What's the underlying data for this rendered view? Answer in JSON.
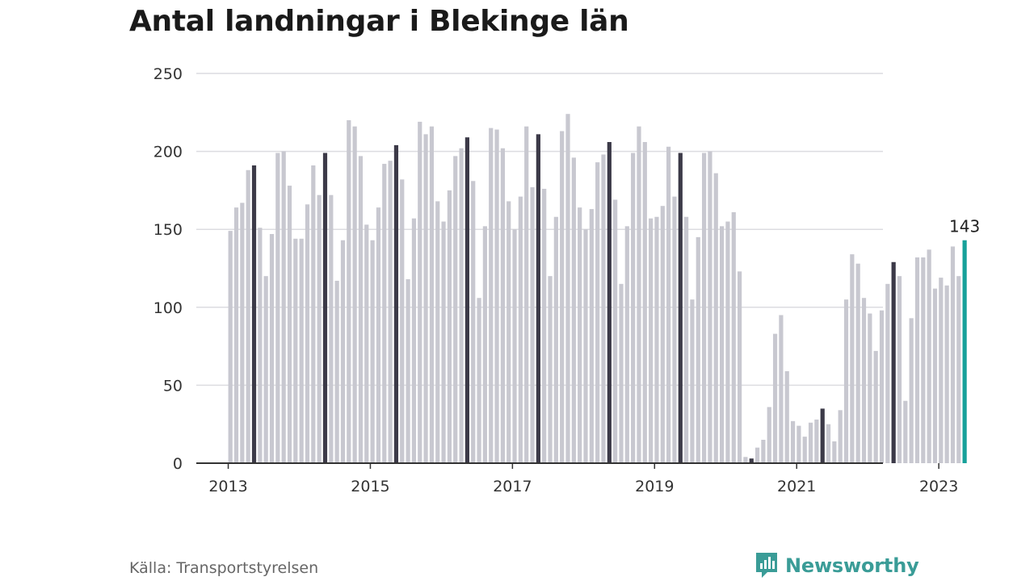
{
  "title": "Antal landningar i Blekinge län",
  "source": "Källa: Transportstyrelsen",
  "brand": {
    "name": "Newsworthy",
    "icon": "newsworthy-logo-icon",
    "color": "#3a9c97"
  },
  "colors": {
    "bar": "#c8c8d0",
    "may_bar": "#3c3a48",
    "latest_bar": "#17a19a",
    "grid": "#dcdce0",
    "axis": "#333333"
  },
  "chart_data": {
    "type": "bar",
    "title": "Antal landningar i Blekinge län",
    "xlabel": "",
    "ylabel": "",
    "ylim": [
      0,
      250
    ],
    "yticks": [
      0,
      50,
      100,
      150,
      200,
      250
    ],
    "xticks": [
      "2013",
      "2015",
      "2017",
      "2019",
      "2021",
      "2023"
    ],
    "start": "2013-01",
    "grid": true,
    "highlight_month": "May",
    "annotation": {
      "month": "2023-05",
      "value": 143,
      "label": "143"
    },
    "values": [
      149,
      164,
      167,
      188,
      191,
      151,
      120,
      147,
      199,
      200,
      178,
      144,
      144,
      166,
      191,
      172,
      199,
      172,
      117,
      143,
      220,
      216,
      197,
      153,
      143,
      164,
      192,
      194,
      204,
      182,
      118,
      157,
      219,
      211,
      216,
      168,
      155,
      175,
      197,
      202,
      209,
      181,
      106,
      152,
      215,
      214,
      202,
      168,
      150,
      171,
      216,
      177,
      211,
      176,
      120,
      158,
      213,
      224,
      196,
      164,
      150,
      163,
      193,
      198,
      206,
      169,
      115,
      152,
      199,
      216,
      206,
      157,
      158,
      165,
      203,
      171,
      199,
      158,
      105,
      145,
      199,
      200,
      186,
      152,
      155,
      161,
      123,
      4,
      3,
      10,
      15,
      36,
      83,
      95,
      59,
      27,
      24,
      17,
      26,
      28,
      35,
      25,
      14,
      34,
      105,
      134,
      128,
      106,
      96,
      72,
      98,
      115,
      129,
      120,
      40,
      93,
      132,
      132,
      137,
      112,
      119,
      114,
      139,
      120,
      143
    ]
  }
}
